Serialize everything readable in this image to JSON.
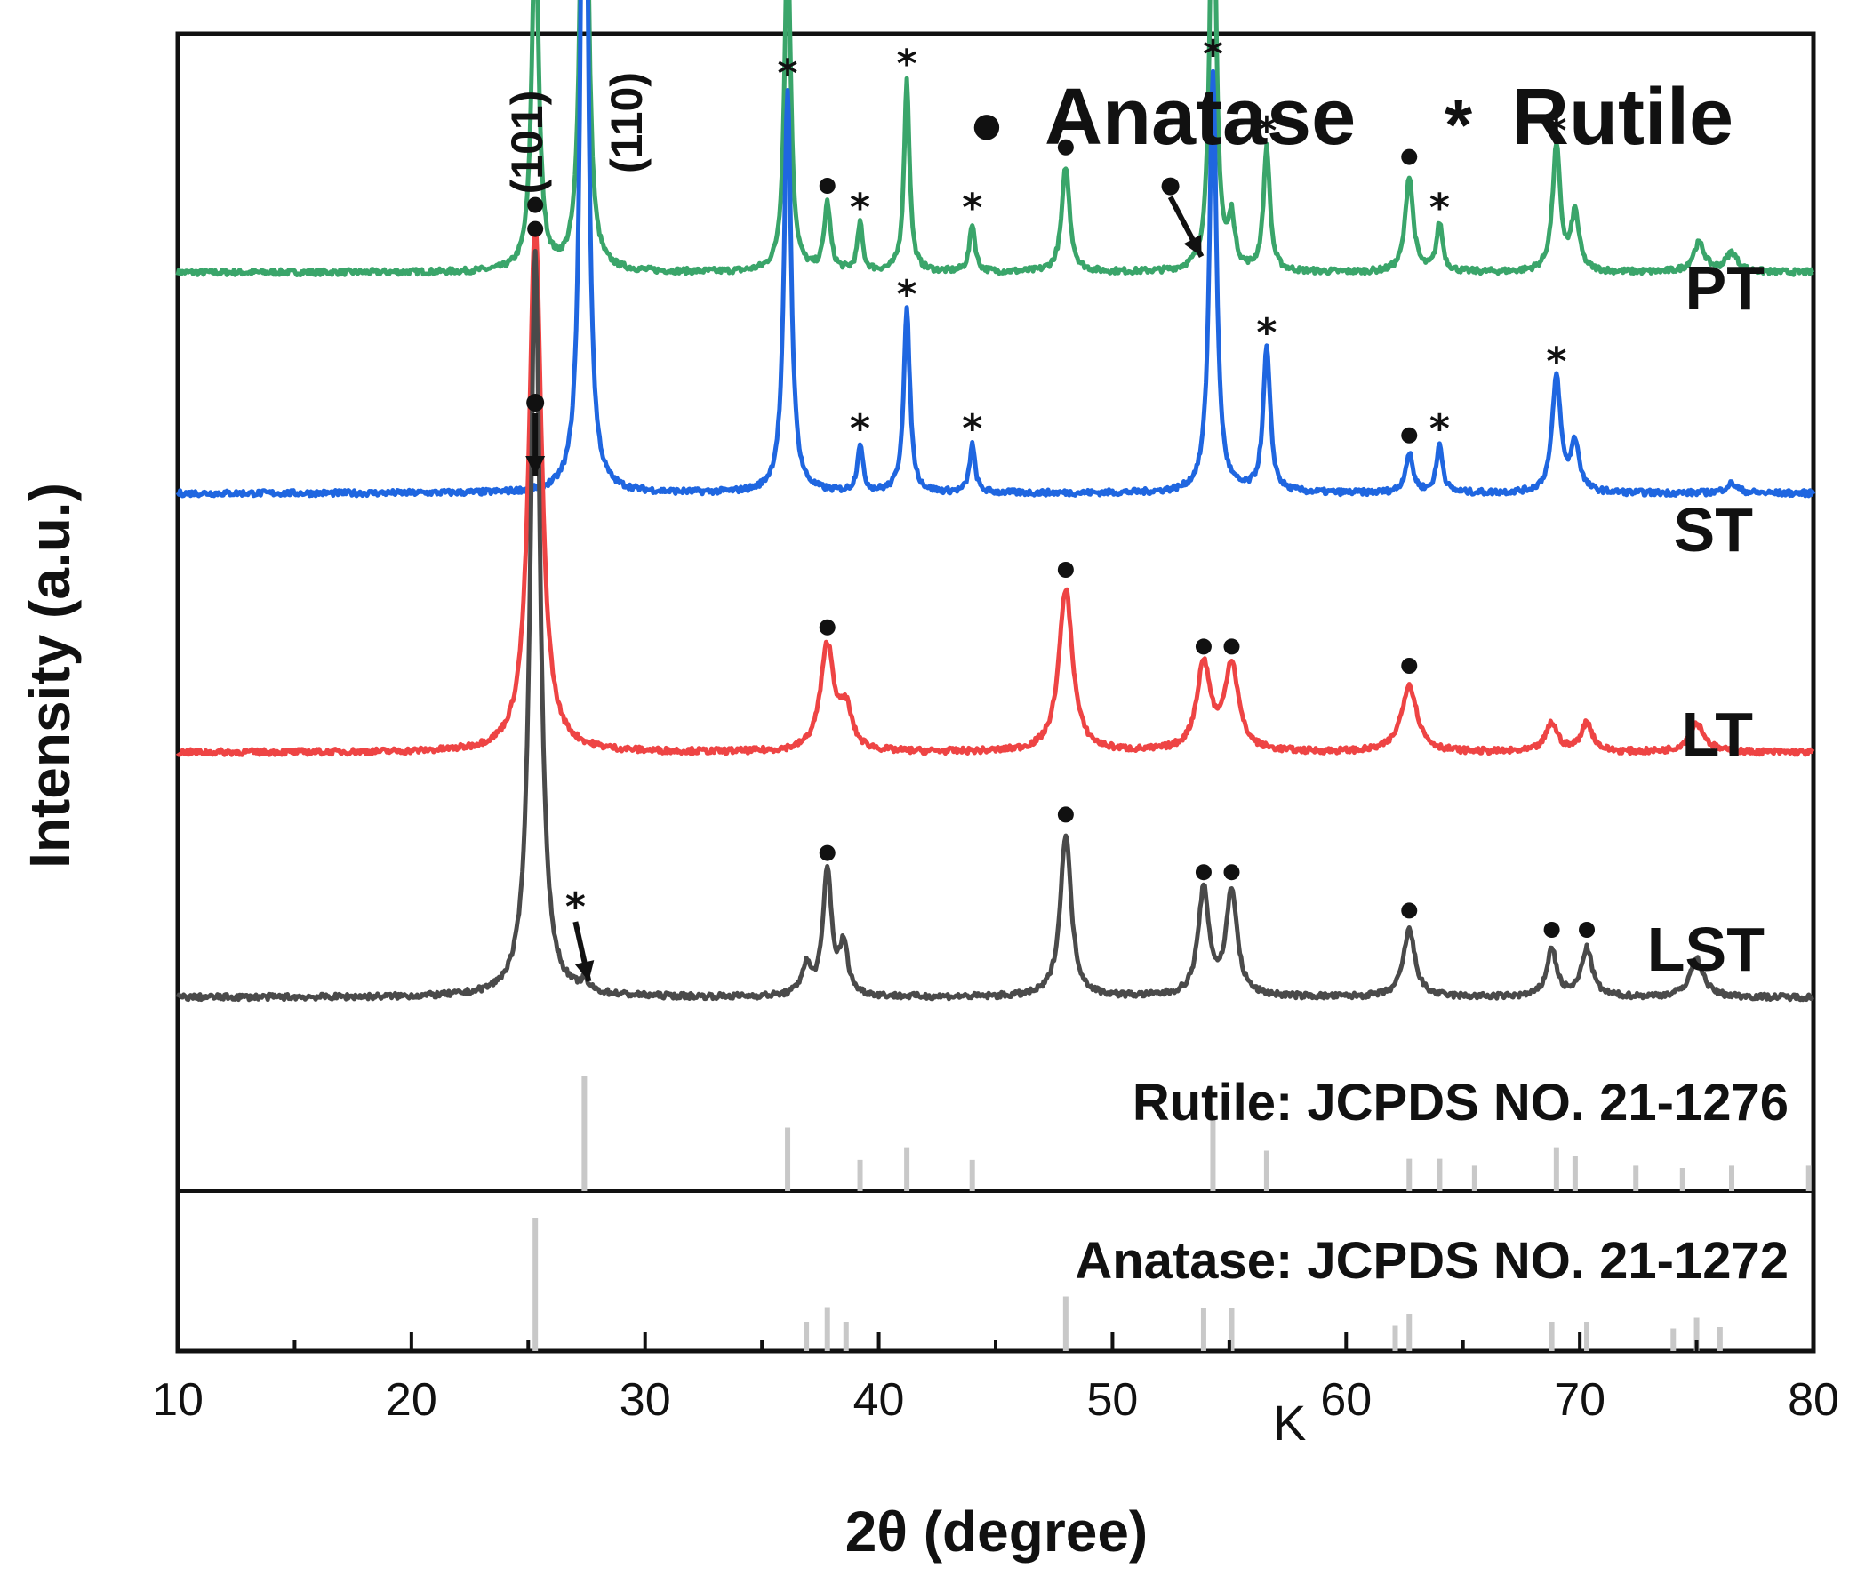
{
  "chart_data": {
    "type": "line",
    "xlabel": "2θ (degree)",
    "ylabel": "Intensity (a.u.)",
    "xlim": [
      10,
      80
    ],
    "xticks": [
      10,
      20,
      30,
      40,
      50,
      60,
      70,
      80
    ],
    "xtick_labels": [
      "10",
      "20",
      "30",
      "40",
      "50",
      "60",
      "70",
      "80"
    ],
    "stray_text": "K",
    "legend": {
      "placement": "top-right",
      "entries": [
        {
          "marker": "●",
          "label": "Anatase"
        },
        {
          "marker": "*",
          "label": "Rutile"
        }
      ]
    },
    "plane_labels": [
      {
        "text": "(101)",
        "x": 25.3
      },
      {
        "text": "(110)",
        "x": 27.4
      }
    ],
    "series": [
      {
        "name": "PT",
        "color": "#3aa56a",
        "baseline": 0.855,
        "peaks": [
          {
            "x": 25.3,
            "h": 0.36,
            "w": 0.18,
            "marker": "●"
          },
          {
            "x": 27.4,
            "h": 0.78,
            "w": 0.15,
            "marker": "*"
          },
          {
            "x": 36.1,
            "h": 0.35,
            "w": 0.16,
            "marker": "*"
          },
          {
            "x": 37.8,
            "h": 0.07,
            "w": 0.16,
            "marker": "●"
          },
          {
            "x": 39.2,
            "h": 0.05,
            "w": 0.13,
            "marker": "*"
          },
          {
            "x": 41.2,
            "h": 0.2,
            "w": 0.14,
            "marker": "*"
          },
          {
            "x": 44.0,
            "h": 0.05,
            "w": 0.14,
            "marker": "*"
          },
          {
            "x": 48.0,
            "h": 0.11,
            "w": 0.2,
            "marker": "●"
          },
          {
            "x": 54.3,
            "h": 0.46,
            "w": 0.16,
            "marker": "*"
          },
          {
            "x": 55.1,
            "h": 0.05,
            "w": 0.16
          },
          {
            "x": 56.6,
            "h": 0.13,
            "w": 0.16,
            "marker": "*"
          },
          {
            "x": 62.7,
            "h": 0.1,
            "w": 0.2,
            "marker": "●"
          },
          {
            "x": 64.0,
            "h": 0.05,
            "w": 0.16,
            "marker": "*"
          },
          {
            "x": 69.0,
            "h": 0.13,
            "w": 0.2,
            "marker": "*"
          },
          {
            "x": 69.8,
            "h": 0.06,
            "w": 0.2
          },
          {
            "x": 75.1,
            "h": 0.03,
            "w": 0.3
          },
          {
            "x": 76.5,
            "h": 0.02,
            "w": 0.3
          }
        ]
      },
      {
        "name": "ST",
        "color": "#1f66e0",
        "baseline": 0.625,
        "peaks": [
          {
            "x": 27.4,
            "h": 1.0,
            "w": 0.16,
            "marker": "*"
          },
          {
            "x": 36.1,
            "h": 0.42,
            "w": 0.18,
            "marker": "*"
          },
          {
            "x": 39.2,
            "h": 0.05,
            "w": 0.14,
            "marker": "*"
          },
          {
            "x": 41.2,
            "h": 0.19,
            "w": 0.16,
            "marker": "*"
          },
          {
            "x": 44.0,
            "h": 0.05,
            "w": 0.14,
            "marker": "*"
          },
          {
            "x": 54.3,
            "h": 0.44,
            "w": 0.18,
            "marker": "*"
          },
          {
            "x": 56.6,
            "h": 0.15,
            "w": 0.18,
            "marker": "*"
          },
          {
            "x": 62.7,
            "h": 0.04,
            "w": 0.2,
            "marker": "●"
          },
          {
            "x": 64.0,
            "h": 0.05,
            "w": 0.16,
            "marker": "*"
          },
          {
            "x": 69.0,
            "h": 0.12,
            "w": 0.22,
            "marker": "*"
          },
          {
            "x": 69.8,
            "h": 0.05,
            "w": 0.22
          },
          {
            "x": 76.5,
            "h": 0.01,
            "w": 0.3
          }
        ]
      },
      {
        "name": "LT",
        "color": "#ee4444",
        "baseline": 0.355,
        "peaks": [
          {
            "x": 25.3,
            "h": 0.55,
            "w": 0.32,
            "marker": "●"
          },
          {
            "x": 37.8,
            "h": 0.11,
            "w": 0.35,
            "marker": "●"
          },
          {
            "x": 38.6,
            "h": 0.04,
            "w": 0.3
          },
          {
            "x": 48.0,
            "h": 0.17,
            "w": 0.35,
            "marker": "●"
          },
          {
            "x": 53.9,
            "h": 0.09,
            "w": 0.35,
            "marker": "●"
          },
          {
            "x": 55.1,
            "h": 0.09,
            "w": 0.35,
            "marker": "●"
          },
          {
            "x": 62.7,
            "h": 0.07,
            "w": 0.4,
            "marker": "●"
          },
          {
            "x": 68.8,
            "h": 0.03,
            "w": 0.3
          },
          {
            "x": 70.3,
            "h": 0.03,
            "w": 0.3
          },
          {
            "x": 75.0,
            "h": 0.03,
            "w": 0.4
          }
        ]
      },
      {
        "name": "LST",
        "color": "#4a4a4a",
        "baseline": 0.1,
        "peaks": [
          {
            "x": 25.3,
            "h": 0.78,
            "w": 0.25,
            "marker": "●"
          },
          {
            "x": 27.4,
            "h": 0.01,
            "w": 0.2
          },
          {
            "x": 36.9,
            "h": 0.03,
            "w": 0.25
          },
          {
            "x": 37.8,
            "h": 0.13,
            "w": 0.22,
            "marker": "●"
          },
          {
            "x": 38.5,
            "h": 0.05,
            "w": 0.22
          },
          {
            "x": 48.0,
            "h": 0.17,
            "w": 0.28,
            "marker": "●"
          },
          {
            "x": 53.9,
            "h": 0.11,
            "w": 0.28,
            "marker": "●"
          },
          {
            "x": 55.1,
            "h": 0.11,
            "w": 0.28,
            "marker": "●"
          },
          {
            "x": 62.7,
            "h": 0.07,
            "w": 0.3,
            "marker": "●"
          },
          {
            "x": 68.8,
            "h": 0.05,
            "w": 0.25,
            "marker": "●"
          },
          {
            "x": 70.3,
            "h": 0.05,
            "w": 0.28,
            "marker": "●"
          },
          {
            "x": 75.0,
            "h": 0.04,
            "w": 0.35
          }
        ]
      }
    ],
    "arrows": [
      {
        "series": "PT",
        "x": 54.0,
        "marker": "●"
      },
      {
        "series": "ST",
        "x": 25.3,
        "marker": "●"
      },
      {
        "series": "LST",
        "x": 27.4,
        "marker": "*"
      }
    ],
    "references": [
      {
        "label": "Rutile: JCPDS NO. 21-1276",
        "lines": [
          {
            "x": 27.4,
            "i": 100
          },
          {
            "x": 36.1,
            "i": 55
          },
          {
            "x": 39.2,
            "i": 27
          },
          {
            "x": 41.2,
            "i": 38
          },
          {
            "x": 44.0,
            "i": 27
          },
          {
            "x": 54.3,
            "i": 62
          },
          {
            "x": 56.6,
            "i": 35
          },
          {
            "x": 62.7,
            "i": 28
          },
          {
            "x": 64.0,
            "i": 28
          },
          {
            "x": 65.5,
            "i": 22
          },
          {
            "x": 69.0,
            "i": 38
          },
          {
            "x": 69.8,
            "i": 30
          },
          {
            "x": 72.4,
            "i": 22
          },
          {
            "x": 74.4,
            "i": 20
          },
          {
            "x": 76.5,
            "i": 22
          },
          {
            "x": 79.8,
            "i": 22
          }
        ]
      },
      {
        "label": "Anatase: JCPDS NO. 21-1272",
        "lines": [
          {
            "x": 25.3,
            "i": 100
          },
          {
            "x": 36.9,
            "i": 22
          },
          {
            "x": 37.8,
            "i": 33
          },
          {
            "x": 38.6,
            "i": 22
          },
          {
            "x": 48.0,
            "i": 41
          },
          {
            "x": 53.9,
            "i": 32
          },
          {
            "x": 55.1,
            "i": 32
          },
          {
            "x": 62.1,
            "i": 19
          },
          {
            "x": 62.7,
            "i": 28
          },
          {
            "x": 68.8,
            "i": 22
          },
          {
            "x": 70.3,
            "i": 22
          },
          {
            "x": 74.0,
            "i": 17
          },
          {
            "x": 75.0,
            "i": 25
          },
          {
            "x": 76.0,
            "i": 18
          }
        ]
      }
    ]
  }
}
